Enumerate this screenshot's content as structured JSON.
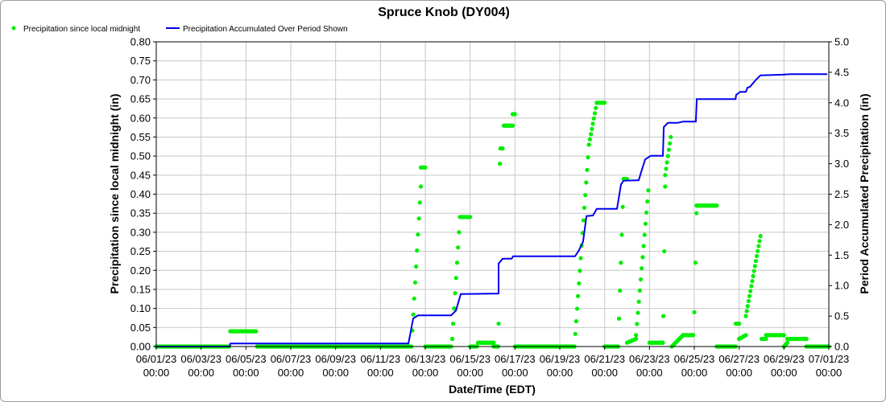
{
  "chart_data": {
    "type": "scatter+line",
    "title": "Spruce Knob (DY004)",
    "xlabel": "Date/Time (EDT)",
    "ylabel": "Precipitation since local midnight (in)",
    "y2label": "Period Accumulated Precipitation (in)",
    "ylim": [
      0,
      0.8
    ],
    "y2lim": [
      0,
      5.0
    ],
    "xlim_days": [
      0,
      30
    ],
    "grid": true,
    "legend_position": "top-left",
    "y_ticks": [
      "0.00",
      "0.05",
      "0.10",
      "0.15",
      "0.20",
      "0.25",
      "0.30",
      "0.35",
      "0.40",
      "0.45",
      "0.50",
      "0.55",
      "0.60",
      "0.65",
      "0.70",
      "0.75",
      "0.80"
    ],
    "y2_ticks": [
      "0.0",
      "0.5",
      "1.0",
      "1.5",
      "2.0",
      "2.5",
      "3.0",
      "3.5",
      "4.0",
      "4.5",
      "5.0"
    ],
    "x_ticks": [
      [
        "06/01/23",
        "00:00"
      ],
      [
        "06/03/23",
        "00:00"
      ],
      [
        "06/05/23",
        "00:00"
      ],
      [
        "06/07/23",
        "00:00"
      ],
      [
        "06/09/23",
        "00:00"
      ],
      [
        "06/11/23",
        "00:00"
      ],
      [
        "06/13/23",
        "00:00"
      ],
      [
        "06/15/23",
        "00:00"
      ],
      [
        "06/17/23",
        "00:00"
      ],
      [
        "06/19/23",
        "00:00"
      ],
      [
        "06/21/23",
        "00:00"
      ],
      [
        "06/23/23",
        "00:00"
      ],
      [
        "06/25/23",
        "00:00"
      ],
      [
        "06/27/23",
        "00:00"
      ],
      [
        "06/29/23",
        "00:00"
      ],
      [
        "07/01/23",
        "00:00"
      ]
    ],
    "series": [
      {
        "name": "Precipitation since local midnight",
        "color": "#00ee00",
        "axis": "left",
        "style": "dots",
        "hourly_runs_day_start_end_value_start_end": [
          [
            0,
            3.25,
            0,
            0
          ],
          [
            3.3,
            4.45,
            0.04,
            0.04
          ],
          [
            4.5,
            11.35,
            0,
            0
          ],
          [
            11.38,
            11.8,
            0.0,
            0.42
          ],
          [
            11.8,
            12.0,
            0.47,
            0.47
          ],
          [
            12.0,
            13.15,
            0,
            0
          ],
          [
            13.2,
            13.55,
            0.02,
            0.34
          ],
          [
            13.55,
            14.0,
            0.34,
            0.34
          ],
          [
            14.0,
            14.3,
            0,
            0
          ],
          [
            14.35,
            15.05,
            0.01,
            0.01
          ],
          [
            15.05,
            15.25,
            0,
            0
          ],
          [
            15.27,
            15.33,
            0.06,
            0.48
          ],
          [
            15.35,
            15.45,
            0.52,
            0.52
          ],
          [
            15.5,
            15.9,
            0.58,
            0.58
          ],
          [
            15.9,
            16.0,
            0.61,
            0.61
          ],
          [
            16.0,
            18.65,
            0,
            0
          ],
          [
            18.65,
            19.3,
            0,
            0.53
          ],
          [
            19.3,
            19.65,
            0.53,
            0.64
          ],
          [
            19.65,
            20.0,
            0.64,
            0.64
          ],
          [
            20.0,
            20.6,
            0,
            0
          ],
          [
            20.6,
            20.85,
            0,
            0.44
          ],
          [
            20.85,
            21.0,
            0.44,
            0.44
          ],
          [
            21.0,
            21.4,
            0.01,
            0.02
          ],
          [
            21.4,
            21.95,
            0.03,
            0.41
          ],
          [
            22.0,
            22.6,
            0.01,
            0.01
          ],
          [
            22.62,
            22.7,
            0.08,
            0.42
          ],
          [
            22.7,
            22.95,
            0.45,
            0.55
          ],
          [
            23.0,
            23.5,
            0,
            0.03
          ],
          [
            23.5,
            23.95,
            0.03,
            0.03
          ],
          [
            24.0,
            24.1,
            0.09,
            0.35
          ],
          [
            24.1,
            25.0,
            0.37,
            0.37
          ],
          [
            25.0,
            25.85,
            0,
            0
          ],
          [
            25.85,
            26.0,
            0.06,
            0.06
          ],
          [
            26.0,
            26.3,
            0.02,
            0.03
          ],
          [
            26.3,
            26.95,
            0.08,
            0.29
          ],
          [
            27.0,
            27.2,
            0.02,
            0.02
          ],
          [
            27.2,
            28.0,
            0.03,
            0.03
          ],
          [
            28.0,
            28.15,
            0,
            0.01
          ],
          [
            28.15,
            29.0,
            0.02,
            0.02
          ],
          [
            29.0,
            30.0,
            0,
            0
          ]
        ]
      },
      {
        "name": "Precipitation Accumulated Over Period Shown",
        "color": "#0000ee",
        "axis": "right",
        "style": "line",
        "points_day_value": [
          [
            0,
            0
          ],
          [
            3.27,
            0
          ],
          [
            3.31,
            0.05
          ],
          [
            11.25,
            0.05
          ],
          [
            11.46,
            0.46
          ],
          [
            11.68,
            0.51
          ],
          [
            13.15,
            0.51
          ],
          [
            13.37,
            0.59
          ],
          [
            13.58,
            0.86
          ],
          [
            15.27,
            0.87
          ],
          [
            15.27,
            1.36
          ],
          [
            15.45,
            1.44
          ],
          [
            15.85,
            1.44
          ],
          [
            15.92,
            1.48
          ],
          [
            18.68,
            1.48
          ],
          [
            18.86,
            1.58
          ],
          [
            19.04,
            1.72
          ],
          [
            19.19,
            2.14
          ],
          [
            19.48,
            2.15
          ],
          [
            19.65,
            2.26
          ],
          [
            20.55,
            2.26
          ],
          [
            20.73,
            2.66
          ],
          [
            20.84,
            2.72
          ],
          [
            21.52,
            2.73
          ],
          [
            21.63,
            2.86
          ],
          [
            21.81,
            3.07
          ],
          [
            22.06,
            3.13
          ],
          [
            22.6,
            3.13
          ],
          [
            22.64,
            3.6
          ],
          [
            22.82,
            3.67
          ],
          [
            23.25,
            3.67
          ],
          [
            23.5,
            3.69
          ],
          [
            24.07,
            3.69
          ],
          [
            24.11,
            4.06
          ],
          [
            25.84,
            4.06
          ],
          [
            25.87,
            4.13
          ],
          [
            26.05,
            4.18
          ],
          [
            26.3,
            4.18
          ],
          [
            26.37,
            4.25
          ],
          [
            26.48,
            4.26
          ],
          [
            26.73,
            4.37
          ],
          [
            26.95,
            4.45
          ],
          [
            27.92,
            4.46
          ],
          [
            28.28,
            4.47
          ],
          [
            29.93,
            4.47
          ]
        ]
      }
    ]
  }
}
